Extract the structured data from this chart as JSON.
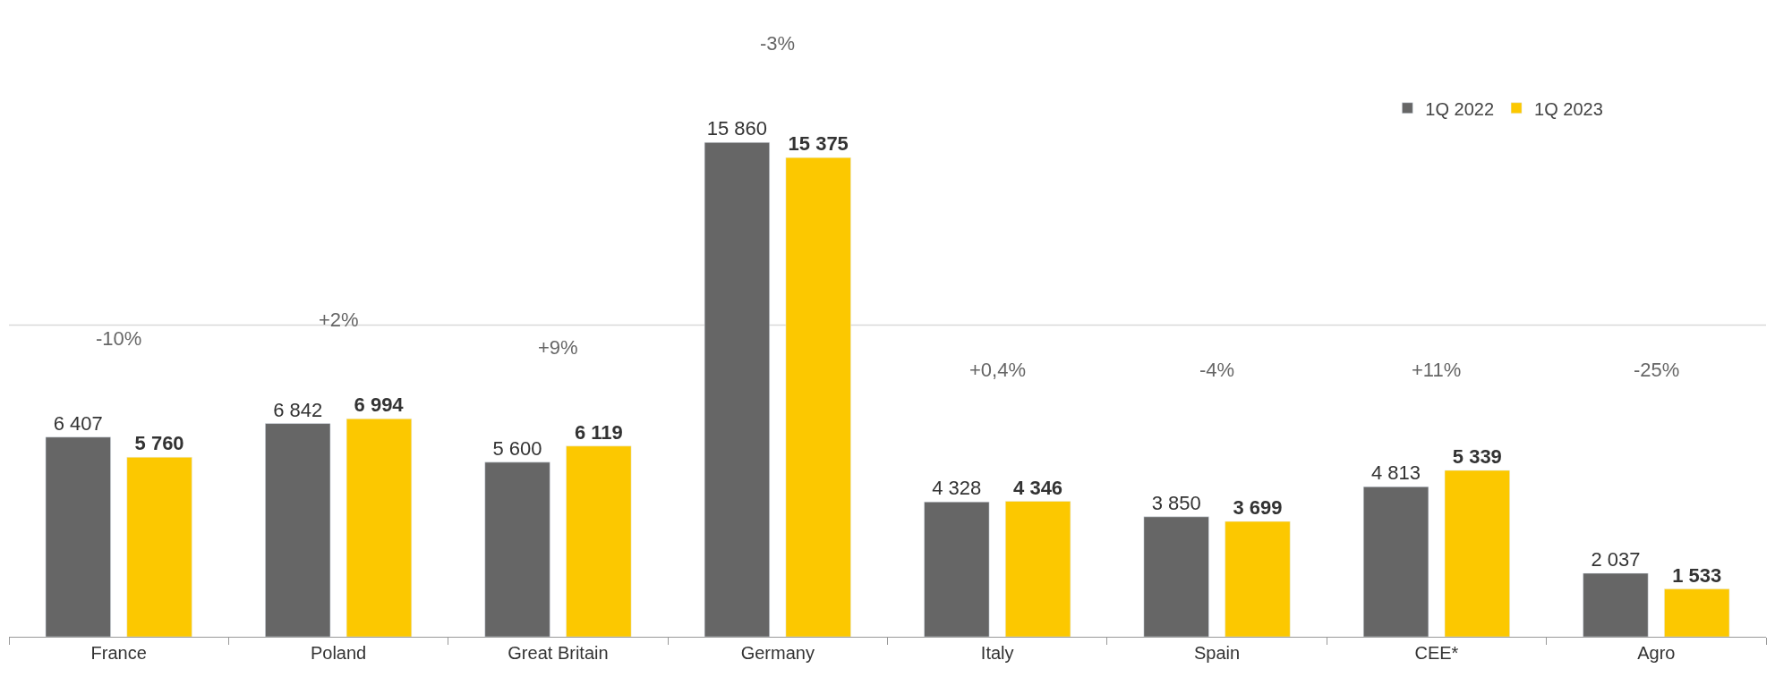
{
  "chart_data": {
    "type": "bar",
    "categories": [
      "France",
      "Poland",
      "Great Britain",
      "Germany",
      "Italy",
      "Spain",
      "CEE*",
      "Agro"
    ],
    "series": [
      {
        "name": "1Q 2022",
        "color": "#666666",
        "values": [
          6407,
          6842,
          5600,
          15860,
          4328,
          3850,
          4813,
          2037
        ],
        "value_labels": [
          "6 407",
          "6 842",
          "5 600",
          "15 860",
          "4 328",
          "3 850",
          "4 813",
          "2 037"
        ]
      },
      {
        "name": "1Q 2023",
        "color": "#fcc800",
        "values": [
          5760,
          6994,
          6119,
          15375,
          4346,
          3699,
          5339,
          1533
        ],
        "value_labels": [
          "5 760",
          "6 994",
          "6 119",
          "15 375",
          "4 346",
          "3 699",
          "5 339",
          "1 533"
        ]
      }
    ],
    "ref_lines": [
      {
        "axis": "y",
        "value": 10000,
        "color": "#d9d9d9"
      }
    ],
    "legend": "top right",
    "tick_labels": "x",
    "annotations": [
      "-10%",
      "+2%",
      "+9%",
      "-3%",
      "+0,4%",
      "-4%",
      "+11%",
      "-25%"
    ]
  }
}
